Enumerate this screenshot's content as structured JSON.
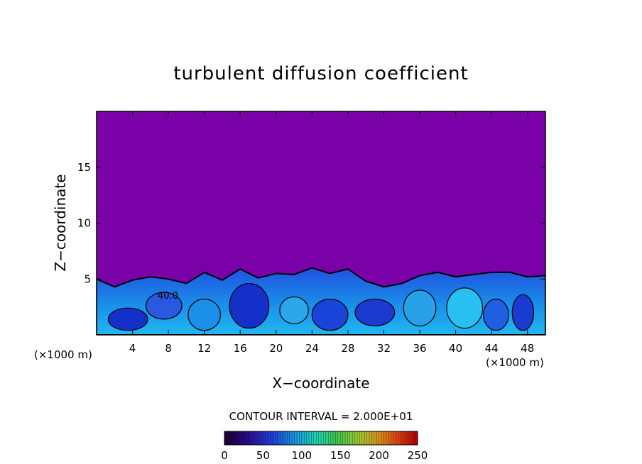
{
  "chart_data": {
    "type": "heatmap",
    "title": "turbulent diffusion coefficient",
    "xlabel": "X−coordinate",
    "ylabel": "Z−coordinate",
    "x_unit_left": "(×1000 m)",
    "x_unit_right": "(×1000 m)",
    "xlim": [
      0,
      50
    ],
    "ylim": [
      0,
      20
    ],
    "x_ticks": [
      4,
      8,
      12,
      16,
      20,
      24,
      28,
      32,
      36,
      40,
      44,
      48
    ],
    "y_ticks": [
      5,
      10,
      15
    ],
    "contour_interval_label": "CONTOUR INTERVAL = 2.000E+01",
    "contour_label": "40.0",
    "colorbar": {
      "min": 0,
      "max": 250,
      "ticks": [
        0,
        50,
        100,
        150,
        200,
        250
      ],
      "colors": [
        "#1a0030",
        "#2a0a8a",
        "#1f40d8",
        "#1aa0e0",
        "#20d8b0",
        "#40c850",
        "#a0c830",
        "#d89020",
        "#d84010",
        "#b00000"
      ]
    },
    "background_value_color": "#7a00a8",
    "layer_top_profile": [
      [
        0,
        5.0
      ],
      [
        2,
        4.3
      ],
      [
        4,
        4.9
      ],
      [
        6,
        5.2
      ],
      [
        8,
        5.0
      ],
      [
        10,
        4.6
      ],
      [
        12,
        5.6
      ],
      [
        14,
        4.9
      ],
      [
        16,
        5.9
      ],
      [
        18,
        5.1
      ],
      [
        20,
        5.5
      ],
      [
        22,
        5.4
      ],
      [
        24,
        6.0
      ],
      [
        26,
        5.5
      ],
      [
        28,
        5.9
      ],
      [
        30,
        4.8
      ],
      [
        32,
        4.3
      ],
      [
        34,
        4.6
      ],
      [
        36,
        5.3
      ],
      [
        38,
        5.6
      ],
      [
        40,
        5.2
      ],
      [
        42,
        5.4
      ],
      [
        44,
        5.6
      ],
      [
        46,
        5.6
      ],
      [
        48,
        5.2
      ],
      [
        50,
        5.3
      ]
    ]
  }
}
